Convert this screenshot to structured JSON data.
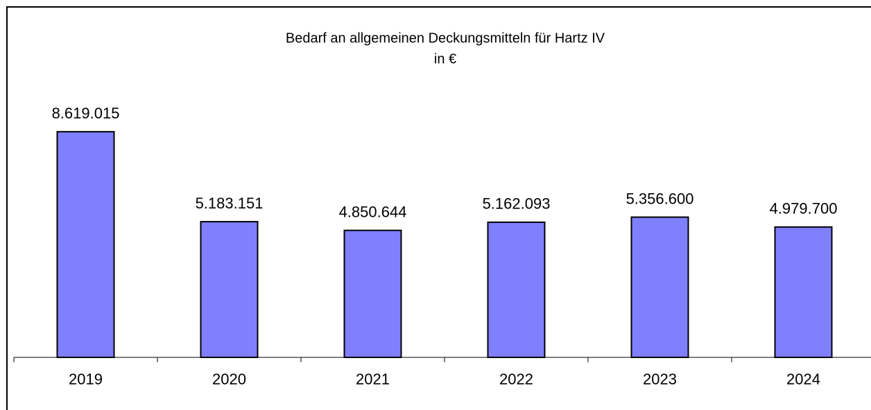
{
  "chart_data": {
    "type": "bar",
    "title": "Bedarf an allgemeinen Deckungsmitteln für Hartz IV",
    "subtitle": "in €",
    "categories": [
      "2019",
      "2020",
      "2021",
      "2022",
      "2023",
      "2024"
    ],
    "values": [
      8619015,
      5183151,
      4850644,
      5162093,
      5356600,
      4979700
    ],
    "value_labels": [
      "8.619.015",
      "5.183.151",
      "4.850.644",
      "5.162.093",
      "5.356.600",
      "4.979.700"
    ],
    "color": "#8080ff",
    "ylim": [
      0,
      10000000
    ]
  }
}
